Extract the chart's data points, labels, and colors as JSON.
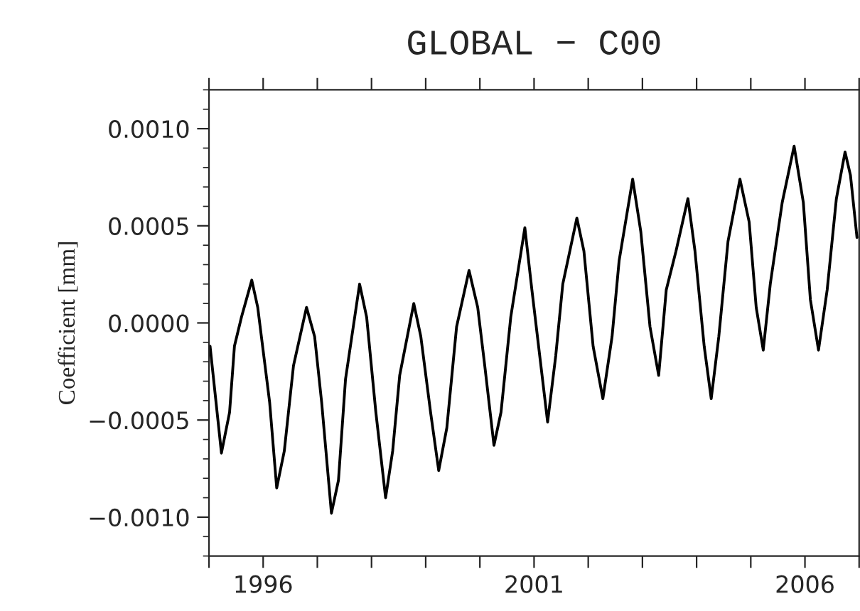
{
  "chart_data": {
    "type": "line",
    "title": "GLOBAL − C00",
    "ylabel": "Coefficient [mm]",
    "xlim": [
      1995,
      2007
    ],
    "ylim": [
      -0.0012,
      0.0012
    ],
    "xticks": [
      {
        "value": 1995,
        "label": null
      },
      {
        "value": 1996,
        "label": "1996"
      },
      {
        "value": 1997,
        "label": null
      },
      {
        "value": 1998,
        "label": null
      },
      {
        "value": 1999,
        "label": null
      },
      {
        "value": 2000,
        "label": null
      },
      {
        "value": 2001,
        "label": "2001"
      },
      {
        "value": 2002,
        "label": null
      },
      {
        "value": 2003,
        "label": null
      },
      {
        "value": 2004,
        "label": null
      },
      {
        "value": 2005,
        "label": null
      },
      {
        "value": 2006,
        "label": "2006"
      },
      {
        "value": 2007,
        "label": null
      }
    ],
    "yticks": [
      {
        "value": -0.001,
        "label": "−0.0010"
      },
      {
        "value": -0.0005,
        "label": "−0.0005"
      },
      {
        "value": 0,
        "label": "0.0000"
      },
      {
        "value": 0.0005,
        "label": "0.0005"
      },
      {
        "value": 0.001,
        "label": "0.0010"
      }
    ],
    "series": [
      {
        "color": "#000000",
        "x": [
          1995.0,
          1995.02,
          1995.23,
          1995.38,
          1995.47,
          1995.6,
          1995.79,
          1995.9,
          1996.12,
          1996.25,
          1996.39,
          1996.56,
          1996.8,
          1996.95,
          1997.08,
          1997.26,
          1997.39,
          1997.52,
          1997.78,
          1997.91,
          1998.08,
          1998.26,
          1998.39,
          1998.52,
          1998.78,
          1998.91,
          1999.09,
          1999.24,
          1999.39,
          1999.57,
          1999.8,
          1999.96,
          2000.09,
          2000.26,
          2000.39,
          2000.57,
          2000.83,
          2000.96,
          2001.25,
          2001.4,
          2001.53,
          2001.79,
          2001.92,
          2002.09,
          2002.27,
          2002.44,
          2002.57,
          2002.82,
          2002.97,
          2003.14,
          2003.3,
          2003.44,
          2003.62,
          2003.84,
          2003.97,
          2004.14,
          2004.27,
          2004.41,
          2004.58,
          2004.8,
          2004.97,
          2005.1,
          2005.23,
          2005.36,
          2005.58,
          2005.8,
          2005.97,
          2006.1,
          2006.25,
          2006.41,
          2006.58,
          2006.74,
          2006.84,
          2006.96
        ],
        "values": [
          -0.00015,
          -0.00012,
          -0.00067,
          -0.00046,
          -0.00012,
          3e-05,
          0.00022,
          8e-05,
          -0.00041,
          -0.00085,
          -0.00066,
          -0.00022,
          8e-05,
          -7e-05,
          -0.00041,
          -0.00098,
          -0.00081,
          -0.00029,
          0.0002,
          3e-05,
          -0.00046,
          -0.0009,
          -0.00066,
          -0.00027,
          0.0001,
          -7e-05,
          -0.00046,
          -0.00076,
          -0.00054,
          -2e-05,
          0.00027,
          8e-05,
          -0.00022,
          -0.00063,
          -0.00046,
          3e-05,
          0.00049,
          0.00017,
          -0.00051,
          -0.00017,
          0.0002,
          0.00054,
          0.00037,
          -0.00012,
          -0.00039,
          -7e-05,
          0.00032,
          0.00074,
          0.00047,
          -2e-05,
          -0.00027,
          0.00017,
          0.00037,
          0.00064,
          0.00037,
          -0.00012,
          -0.00039,
          -7e-05,
          0.00042,
          0.00074,
          0.00052,
          8e-05,
          -0.00014,
          0.0002,
          0.00062,
          0.00091,
          0.00062,
          0.00012,
          -0.00014,
          0.00017,
          0.00064,
          0.00088,
          0.00076,
          0.00044
        ]
      }
    ]
  }
}
